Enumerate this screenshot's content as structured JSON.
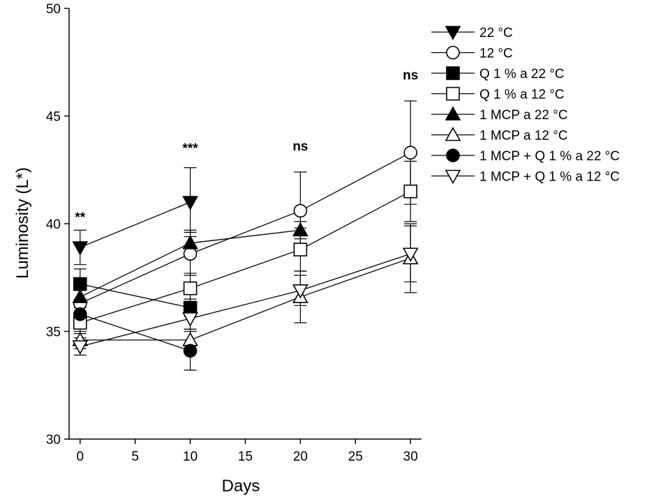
{
  "chart_data": {
    "type": "line",
    "xlabel": "Days",
    "ylabel": "Luminosity  (L*)",
    "xlim": [
      -1,
      31
    ],
    "ylim": [
      30,
      50
    ],
    "xticks": [
      0,
      5,
      10,
      15,
      20,
      25,
      30
    ],
    "yticks": [
      30,
      35,
      40,
      45,
      50
    ],
    "x": [
      0,
      10,
      20,
      30
    ],
    "series": [
      {
        "name": "22 °C",
        "marker": "triangle-down",
        "fill": "#000000",
        "x": [
          0,
          10
        ],
        "values": [
          38.9,
          41.0
        ],
        "errors": [
          0.8,
          1.6
        ]
      },
      {
        "name": "12 °C",
        "marker": "circle",
        "fill": "#ffffff",
        "x": [
          0,
          10,
          20,
          30
        ],
        "values": [
          36.3,
          38.6,
          40.6,
          43.3
        ],
        "errors": [
          0.6,
          1.0,
          1.8,
          2.4
        ]
      },
      {
        "name": "Q 1 % a 22 °C",
        "marker": "square",
        "fill": "#000000",
        "x": [
          0,
          10
        ],
        "values": [
          37.2,
          36.1
        ],
        "errors": [
          0.7,
          0.4
        ]
      },
      {
        "name": "Q 1 % a 12 °C",
        "marker": "square",
        "fill": "#ffffff",
        "x": [
          0,
          10,
          20,
          30
        ],
        "values": [
          35.4,
          37.0,
          38.8,
          41.5
        ],
        "errors": [
          0.5,
          0.7,
          1.0,
          1.4
        ]
      },
      {
        "name": "1 MCP a 22 °C",
        "marker": "triangle-up",
        "fill": "#000000",
        "x": [
          0,
          10,
          20
        ],
        "values": [
          36.6,
          39.1,
          39.7
        ],
        "errors": [
          0.5,
          0.6,
          0.4
        ]
      },
      {
        "name": "1 MCP a 12 °C",
        "marker": "triangle-up",
        "fill": "#ffffff",
        "x": [
          0,
          10,
          20,
          30
        ],
        "values": [
          34.6,
          34.6,
          36.6,
          38.4
        ],
        "errors": [
          0.4,
          0.5,
          1.2,
          1.6
        ]
      },
      {
        "name": "1 MCP + Q 1 % a 22 °C",
        "marker": "circle",
        "fill": "#000000",
        "x": [
          0,
          10
        ],
        "values": [
          35.8,
          34.1
        ],
        "errors": [
          0.5,
          0.9
        ]
      },
      {
        "name": "1 MCP + Q 1 % a 12 °C",
        "marker": "triangle-down",
        "fill": "#ffffff",
        "x": [
          0,
          10,
          20,
          30
        ],
        "values": [
          34.3,
          35.6,
          36.9,
          38.6
        ],
        "errors": [
          0.4,
          0.5,
          0.7,
          1.3
        ]
      }
    ],
    "annotations": [
      {
        "text": "**",
        "x": 0,
        "y": 40.1
      },
      {
        "text": "***",
        "x": 10,
        "y": 43.3
      },
      {
        "text": "ns",
        "x": 20,
        "y": 43.4
      },
      {
        "text": "ns",
        "x": 30,
        "y": 46.7
      }
    ],
    "legend_position": "right"
  }
}
